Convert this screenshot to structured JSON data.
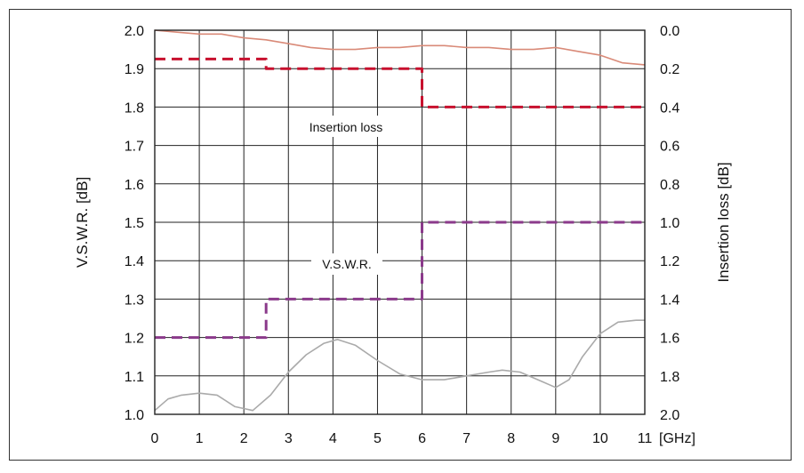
{
  "chart_data": {
    "type": "line",
    "xlabel": "",
    "x_unit": "[GHz]",
    "xlim": [
      0,
      11
    ],
    "x_ticks": [
      "0",
      "1",
      "2",
      "3",
      "4",
      "5",
      "6",
      "7",
      "8",
      "9",
      "10",
      "11"
    ],
    "left_axis": {
      "label": "V.S.W.R. [dB]",
      "lim": [
        1.0,
        2.0
      ],
      "ticks": [
        "1.0",
        "1.1",
        "1.2",
        "1.3",
        "1.4",
        "1.5",
        "1.6",
        "1.7",
        "1.8",
        "1.9",
        "2.0"
      ]
    },
    "right_axis": {
      "label": "Insertion loss [dB]",
      "lim": [
        2.0,
        0.0
      ],
      "inverted": true,
      "ticks": [
        "0.0",
        "0.2",
        "0.4",
        "0.6",
        "0.8",
        "1.0",
        "1.2",
        "1.4",
        "1.6",
        "1.8",
        "2.0"
      ]
    },
    "grid": true,
    "annotations": {
      "insertion_loss": "Insertion loss",
      "vswr": "V.S.W.R."
    },
    "colors": {
      "il_spec": "#c8102e",
      "vswr_spec": "#8b3a8b",
      "il_measured": "#d98a78",
      "vswr_measured": "#aaaaaa"
    },
    "series": [
      {
        "axis": "right",
        "style": "dashed",
        "color": "#c8102e",
        "x": [
          0,
          2.5,
          2.5,
          6,
          6,
          11
        ],
        "values": [
          0.15,
          0.15,
          0.2,
          0.2,
          0.4,
          0.4
        ]
      },
      {
        "axis": "left",
        "style": "dashed",
        "color": "#8b3a8b",
        "x": [
          0,
          2.5,
          2.5,
          6,
          6,
          11
        ],
        "values": [
          1.2,
          1.2,
          1.3,
          1.3,
          1.5,
          1.5
        ]
      },
      {
        "axis": "right",
        "style": "solid",
        "color": "#d98a78",
        "x": [
          0,
          0.5,
          1,
          1.5,
          2,
          2.5,
          3,
          3.5,
          4,
          4.5,
          5,
          5.5,
          6,
          6.5,
          7,
          7.5,
          8,
          8.5,
          9,
          9.5,
          10,
          10.5,
          11
        ],
        "values": [
          0.0,
          0.01,
          0.02,
          0.02,
          0.04,
          0.05,
          0.07,
          0.09,
          0.1,
          0.1,
          0.09,
          0.09,
          0.08,
          0.08,
          0.09,
          0.09,
          0.1,
          0.1,
          0.09,
          0.11,
          0.13,
          0.17,
          0.18
        ]
      },
      {
        "axis": "left",
        "style": "solid",
        "color": "#aaaaaa",
        "x": [
          0,
          0.3,
          0.6,
          1,
          1.4,
          1.8,
          2,
          2.2,
          2.6,
          3,
          3.4,
          3.8,
          4.1,
          4.5,
          5,
          5.5,
          6,
          6.5,
          7,
          7.5,
          7.8,
          8.2,
          8.6,
          9,
          9.3,
          9.6,
          10,
          10.4,
          10.8,
          11
        ],
        "values": [
          1.01,
          1.04,
          1.05,
          1.055,
          1.05,
          1.02,
          1.015,
          1.01,
          1.05,
          1.11,
          1.155,
          1.185,
          1.195,
          1.18,
          1.14,
          1.105,
          1.09,
          1.09,
          1.1,
          1.11,
          1.115,
          1.11,
          1.09,
          1.07,
          1.09,
          1.15,
          1.21,
          1.24,
          1.245,
          1.245
        ]
      }
    ]
  }
}
